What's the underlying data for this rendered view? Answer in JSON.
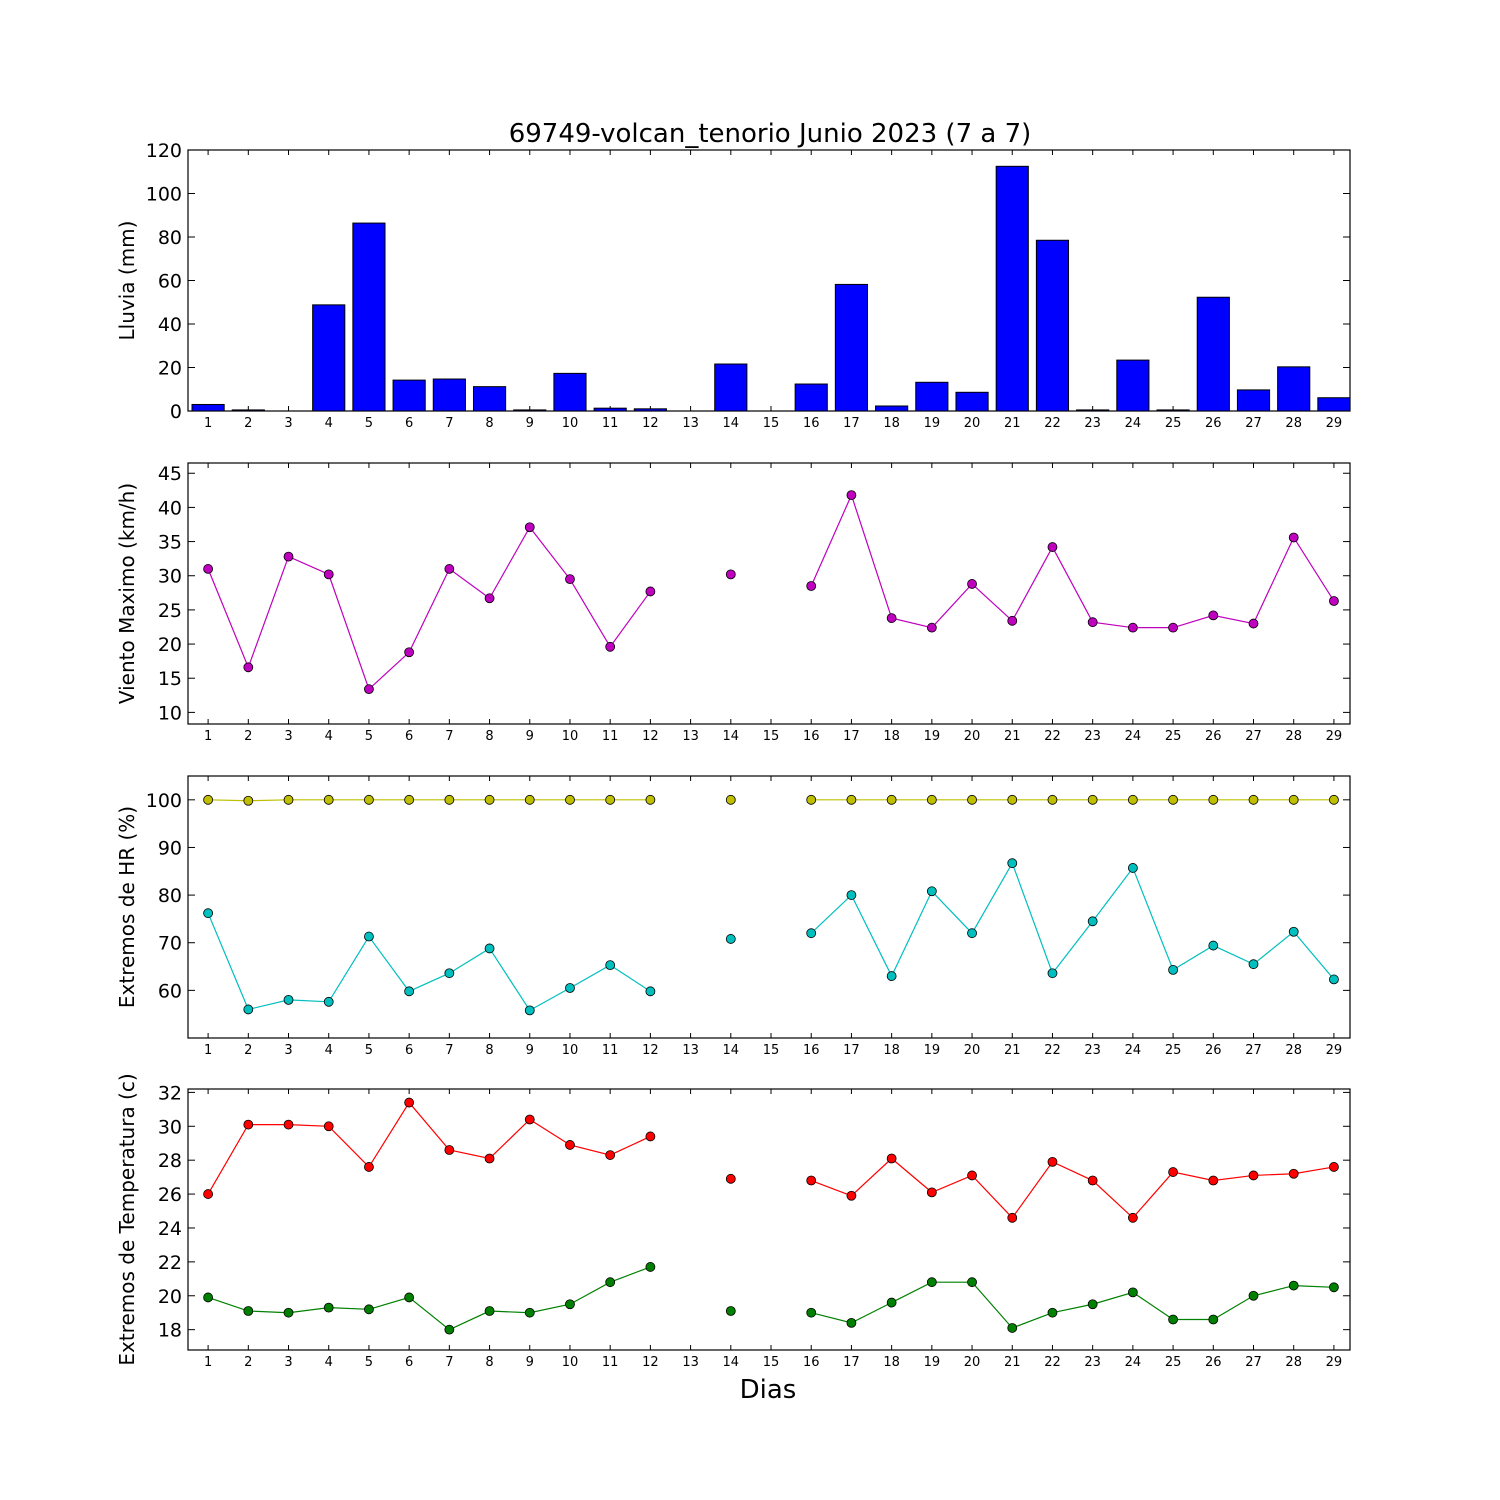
{
  "chart_data": {
    "title": "69749-volcan_tenorio Junio 2023  (7 a 7)",
    "xlabel": "Dias",
    "days": [
      1,
      2,
      3,
      4,
      5,
      6,
      7,
      8,
      9,
      10,
      11,
      12,
      13,
      14,
      15,
      16,
      17,
      18,
      19,
      20,
      21,
      22,
      23,
      24,
      25,
      26,
      27,
      28,
      29
    ],
    "panels": [
      {
        "type": "bar",
        "ylabel": "Lluvia (mm)",
        "ylim": [
          0,
          120
        ],
        "yticks": [
          0,
          20,
          40,
          60,
          80,
          100,
          120
        ],
        "series": [
          {
            "color": "#0000ff",
            "values": [
              3.0,
              0.5,
              0.0,
              48.8,
              86.4,
              14.2,
              14.7,
              11.2,
              0.5,
              17.3,
              1.3,
              1.0,
              null,
              21.6,
              null,
              12.4,
              58.2,
              2.3,
              13.2,
              8.6,
              112.5,
              78.5,
              0.5,
              23.4,
              0.5,
              52.3,
              9.7,
              20.3,
              6.1
            ]
          }
        ]
      },
      {
        "type": "line",
        "ylabel": "Viento Maximo (km/h)",
        "ylim": [
          8.3,
          46.5
        ],
        "yticks": [
          10,
          15,
          20,
          25,
          30,
          35,
          40,
          45
        ],
        "series": [
          {
            "color": "#bf00bf",
            "values": [
              31.0,
              16.6,
              32.8,
              30.2,
              13.4,
              18.8,
              31.0,
              26.7,
              37.1,
              29.5,
              19.6,
              27.7,
              null,
              30.2,
              null,
              28.5,
              41.8,
              23.8,
              22.4,
              28.8,
              23.4,
              34.2,
              23.2,
              22.4,
              22.4,
              24.2,
              23.0,
              35.6,
              26.3
            ]
          }
        ]
      },
      {
        "type": "line",
        "ylabel": "Extremos de HR (%)",
        "ylim": [
          50,
          105
        ],
        "yticks": [
          60,
          70,
          80,
          90,
          100
        ],
        "series": [
          {
            "color": "#bfbf00",
            "values": [
              100,
              99.8,
              100,
              100,
              100,
              100,
              100,
              100,
              100,
              100,
              100,
              100,
              null,
              100,
              null,
              100,
              100,
              100,
              100,
              100,
              100,
              100,
              100,
              100,
              100,
              100,
              100,
              100,
              100
            ]
          },
          {
            "color": "#00bfbf",
            "values": [
              76.2,
              56.0,
              58.0,
              57.6,
              71.3,
              59.8,
              63.6,
              68.8,
              55.8,
              60.5,
              65.3,
              59.8,
              null,
              70.8,
              null,
              72.0,
              80.0,
              63.0,
              80.8,
              72.0,
              86.7,
              63.6,
              74.5,
              85.7,
              64.3,
              69.4,
              65.5,
              72.3,
              62.3
            ]
          }
        ]
      },
      {
        "type": "line",
        "ylabel": "Extremos de Temperatura (c)",
        "ylim": [
          16.8,
          32.2
        ],
        "yticks": [
          18,
          20,
          22,
          24,
          26,
          28,
          30,
          32
        ],
        "series": [
          {
            "color": "#ff0000",
            "values": [
              26.0,
              30.1,
              30.1,
              30.0,
              27.6,
              31.4,
              28.6,
              28.1,
              30.4,
              28.9,
              28.3,
              29.4,
              null,
              26.9,
              null,
              26.8,
              25.9,
              28.1,
              26.1,
              27.1,
              24.6,
              27.9,
              26.8,
              24.6,
              27.3,
              26.8,
              27.1,
              27.2,
              27.6
            ]
          },
          {
            "color": "#008000",
            "values": [
              19.9,
              19.1,
              19.0,
              19.3,
              19.2,
              19.9,
              18.0,
              19.1,
              19.0,
              19.5,
              20.8,
              21.7,
              null,
              19.1,
              null,
              19.0,
              18.4,
              19.6,
              20.8,
              20.8,
              18.1,
              19.0,
              19.5,
              20.2,
              18.6,
              18.6,
              20.0,
              20.6,
              20.5
            ]
          }
        ]
      }
    ]
  }
}
